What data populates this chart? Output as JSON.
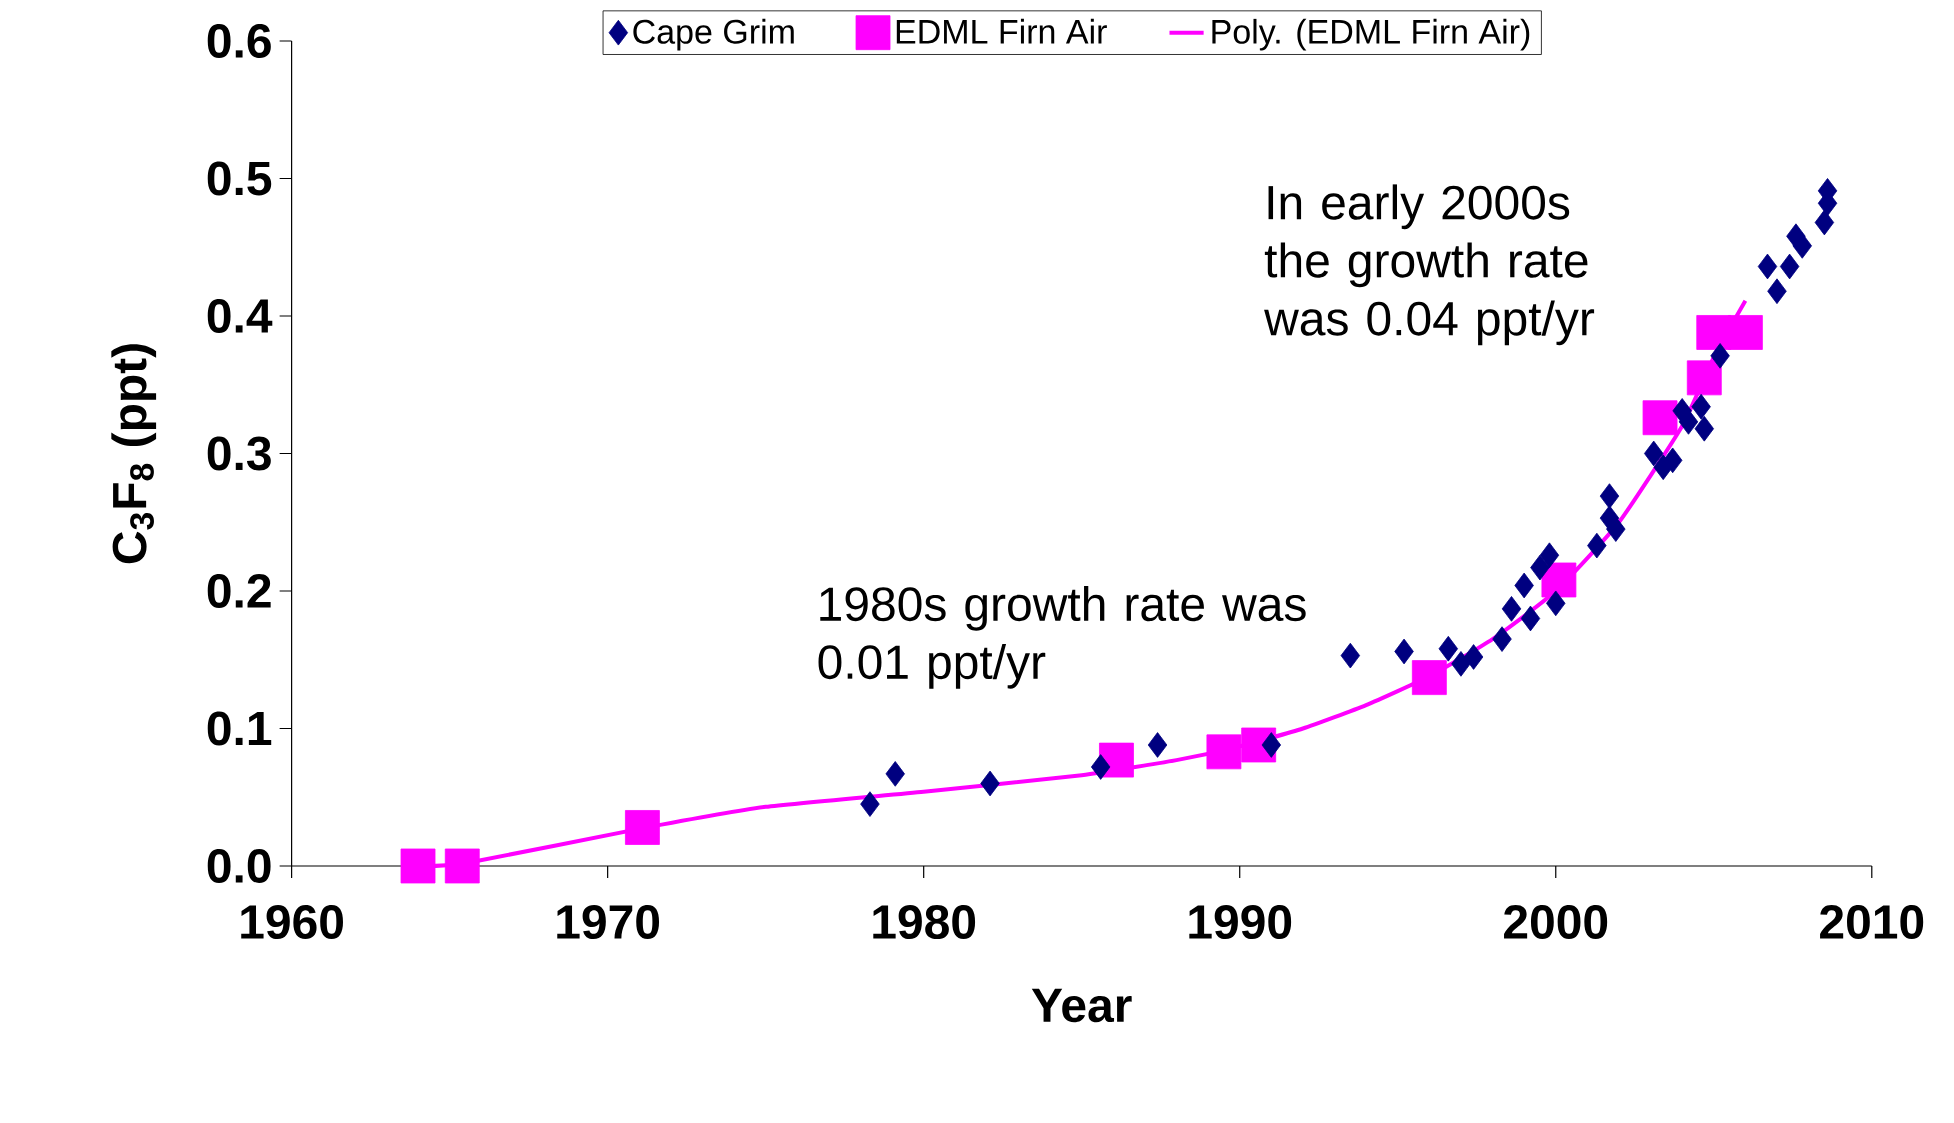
{
  "chart_data": {
    "type": "scatter",
    "xlabel": "Year",
    "ylabel": "C$_{3}$F$_{8}$  (ppt)",
    "xlim": [
      1960,
      2010
    ],
    "xticks": [
      1960,
      1970,
      1980,
      1990,
      2000,
      2010
    ],
    "ylim": [
      0,
      0.6
    ],
    "yticks": [
      {
        "value": 0,
        "label": "0.0"
      },
      0.1,
      0.2,
      0.3,
      0.4,
      0.5,
      0.6
    ],
    "legend": "top",
    "annotations": [
      "1980s growth rate was 0.01 ppt/yr",
      "In early 2000s the growth rate was 0.04 ppt/yr"
    ],
    "series": [
      {
        "name": "Cape Grim",
        "marker": "diamond",
        "color": "#000080",
        "x": [
          1978.3,
          1979.1,
          1982.1,
          1985.6,
          1987.4,
          1991.0,
          1993.5,
          1995.2,
          1996.6,
          1997.0,
          1997.4,
          1998.3,
          1998.6,
          1999.0,
          1999.2,
          1999.5,
          1999.8,
          2000.0,
          2001.3,
          2001.7,
          2001.9,
          2001.7,
          2003.1,
          2003.4,
          2003.7,
          2004.0,
          2004.2,
          2004.6,
          2004.7,
          2005.2,
          2006.7,
          2007.0,
          2007.4,
          2007.6,
          2007.8,
          2008.5,
          2008.6,
          2008.6
        ],
        "values": [
          0.045,
          0.067,
          0.06,
          0.072,
          0.088,
          0.088,
          0.153,
          0.156,
          0.158,
          0.147,
          0.152,
          0.165,
          0.187,
          0.204,
          0.18,
          0.217,
          0.226,
          0.191,
          0.233,
          0.269,
          0.245,
          0.253,
          0.3,
          0.29,
          0.295,
          0.331,
          0.323,
          0.334,
          0.318,
          0.371,
          0.436,
          0.418,
          0.436,
          0.458,
          0.451,
          0.468,
          0.482,
          0.491
        ]
      },
      {
        "name": "EDML Firn Air",
        "marker": "square",
        "color": "#ff00ff",
        "x": [
          1964.0,
          1965.4,
          1971.1,
          1986.1,
          1989.5,
          1990.6,
          1996.0,
          2000.1,
          2003.3,
          2004.7,
          2005.0,
          2006.0
        ],
        "values": [
          0.0,
          0.0,
          0.028,
          0.077,
          0.083,
          0.088,
          0.137,
          0.208,
          0.326,
          0.355,
          0.388,
          0.388
        ]
      },
      {
        "name": "Poly. (EDML Firn Air)",
        "type": "line",
        "marker": "none",
        "color": "#ff00ff",
        "x": [
          1964,
          1965.5,
          1971,
          1975,
          1980,
          1985,
          1988,
          1990,
          1992,
          1994,
          1996,
          1998,
          2000,
          2002,
          2004,
          2005,
          2006
        ],
        "values": [
          0.0,
          0.002,
          0.027,
          0.043,
          0.054,
          0.066,
          0.077,
          0.087,
          0.1,
          0.117,
          0.138,
          0.165,
          0.2,
          0.25,
          0.32,
          0.37,
          0.411
        ]
      }
    ]
  }
}
